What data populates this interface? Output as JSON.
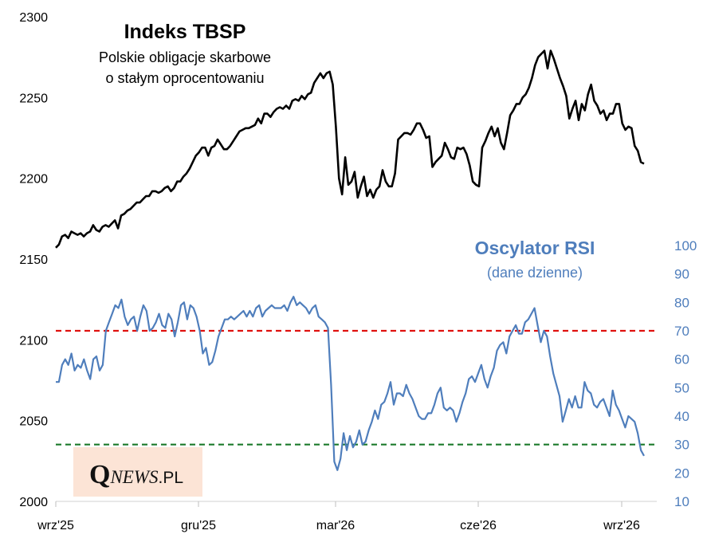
{
  "chart_data": {
    "type": "line",
    "title": "Indeks TBSP",
    "subtitle_lines": [
      "Polskie obligacje skarbowe",
      "o stałym oprocentowaniu"
    ],
    "x_tick_labels": [
      "wrz'25",
      "gru'25",
      "mar'26",
      "cze'26",
      "wrz'26"
    ],
    "y_left": {
      "ticks": [
        "2000",
        "2050",
        "2100",
        "2150",
        "2200",
        "2250",
        "2300"
      ],
      "range": [
        2000,
        2300
      ]
    },
    "y_right": {
      "ticks": [
        "10",
        "20",
        "30",
        "40",
        "50",
        "60",
        "70",
        "80",
        "90",
        "100"
      ],
      "range": [
        10,
        100
      ]
    },
    "overbought_level": 70,
    "oversold_level": 30,
    "overbought_color": "#e0120f",
    "oversold_color": "#1b7a2b",
    "series": [
      {
        "name": "Indeks TBSP",
        "color": "#000000",
        "axis": "left",
        "values": [
          2157,
          2159,
          2164,
          2165,
          2163,
          2167,
          2166,
          2165,
          2166,
          2164,
          2166,
          2167,
          2171,
          2168,
          2167,
          2170,
          2171,
          2170,
          2172,
          2174,
          2169,
          2177,
          2178,
          2180,
          2181,
          2183,
          2185,
          2185,
          2187,
          2189,
          2189,
          2192,
          2192,
          2191,
          2192,
          2194,
          2195,
          2192,
          2194,
          2198,
          2198,
          2201,
          2203,
          2206,
          2210,
          2214,
          2216,
          2219,
          2219,
          2214,
          2219,
          2220,
          2224,
          2221,
          2218,
          2218,
          2220,
          2223,
          2226,
          2229,
          2230,
          2231,
          2231,
          2232,
          2233,
          2237,
          2234,
          2240,
          2240,
          2238,
          2241,
          2243,
          2244,
          2243,
          2245,
          2243,
          2248,
          2249,
          2248,
          2251,
          2249,
          2252,
          2253,
          2259,
          2262,
          2265,
          2262,
          2265,
          2266,
          2258,
          2232,
          2200,
          2190,
          2213,
          2196,
          2198,
          2204,
          2188,
          2195,
          2201,
          2189,
          2193,
          2188,
          2193,
          2195,
          2205,
          2198,
          2195,
          2195,
          2203,
          2224,
          2226,
          2228,
          2228,
          2227,
          2230,
          2234,
          2234,
          2230,
          2225,
          2226,
          2207,
          2210,
          2212,
          2214,
          2222,
          2218,
          2213,
          2212,
          2219,
          2218,
          2219,
          2215,
          2208,
          2198,
          2196,
          2195,
          2219,
          2223,
          2228,
          2232,
          2226,
          2231,
          2222,
          2218,
          2228,
          2239,
          2242,
          2246,
          2246,
          2250,
          2252,
          2256,
          2262,
          2270,
          2275,
          2277,
          2279,
          2268,
          2279,
          2274,
          2268,
          2262,
          2257,
          2251,
          2237,
          2243,
          2248,
          2236,
          2246,
          2242,
          2252,
          2258,
          2248,
          2245,
          2240,
          2242,
          2236,
          2240,
          2240,
          2246,
          2246,
          2234,
          2230,
          2232,
          2231,
          2220,
          2217,
          2210,
          2209
        ],
        "x_start": "2025-09-01",
        "x_end": "2026-09-30"
      },
      {
        "name": "Oscylator RSI",
        "subtitle": "(dane dzienne)",
        "color": "#4f7ebc",
        "axis": "right",
        "values": [
          52,
          52,
          58,
          60,
          58,
          62,
          56,
          58,
          57,
          60,
          56,
          53,
          60,
          61,
          56,
          58,
          70,
          73,
          76,
          79,
          78,
          81,
          75,
          72,
          74,
          75,
          70,
          75,
          79,
          77,
          70,
          71,
          73,
          76,
          72,
          71,
          76,
          74,
          68,
          73,
          79,
          80,
          74,
          79,
          78,
          75,
          70,
          62,
          64,
          58,
          59,
          63,
          68,
          71,
          74,
          74,
          75,
          74,
          75,
          76,
          77,
          75,
          77,
          75,
          78,
          79,
          75,
          77,
          78,
          79,
          78,
          78,
          78,
          79,
          77,
          80,
          82,
          79,
          80,
          79,
          78,
          76,
          78,
          79,
          75,
          74,
          73,
          71,
          51,
          24,
          21,
          25,
          34,
          28,
          33,
          29,
          31,
          35,
          30,
          31,
          35,
          38,
          42,
          39,
          44,
          45,
          48,
          52,
          44,
          48,
          48,
          47,
          51,
          48,
          46,
          43,
          40,
          39,
          39,
          41,
          41,
          44,
          48,
          50,
          43,
          42,
          43,
          42,
          38,
          41,
          45,
          48,
          53,
          54,
          52,
          55,
          58,
          53,
          50,
          54,
          57,
          63,
          65,
          66,
          62,
          68,
          70,
          72,
          69,
          69,
          73,
          74,
          76,
          78,
          72,
          66,
          70,
          68,
          61,
          55,
          51,
          47,
          38,
          42,
          46,
          43,
          47,
          43,
          43,
          52,
          49,
          48,
          44,
          43,
          45,
          46,
          43,
          40,
          49,
          44,
          42,
          39,
          36,
          40,
          39,
          38,
          34,
          28,
          26
        ]
      }
    ],
    "grid": false,
    "legend": "none"
  },
  "watermark": {
    "q": "Q",
    "news": "NEWS",
    "pl": ".PL",
    "background": "#fce4d6"
  }
}
